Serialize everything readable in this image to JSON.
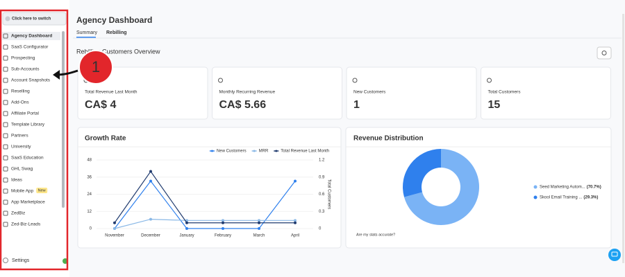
{
  "sidebar": {
    "switcher": "Click here to switch",
    "items": [
      "Agency Dashboard",
      "SaaS Configurator",
      "Prospecting",
      "Sub-Accounts",
      "Account Snapshots",
      "Reselling",
      "Add-Ons",
      "Affiliate Portal",
      "Template Library",
      "Partners",
      "University",
      "SaaS Education",
      "GHL Swag",
      "Ideas",
      "Mobile App",
      "App Marketplace",
      "ZedBiz",
      "Zed-Biz-Leads"
    ],
    "badge": "New",
    "settings": "Settings"
  },
  "annotation": {
    "step": "1"
  },
  "header": {
    "title": "Agency Dashboard",
    "tabs": [
      "Summary",
      "Rebilling"
    ]
  },
  "overview": {
    "title": "Rebilling Customers Overview"
  },
  "cards": [
    {
      "label": "Total Revenue Last Month",
      "value": "CA$ 4"
    },
    {
      "label": "Monthly Recurring Revenue",
      "value": "CA$ 5.66"
    },
    {
      "label": "New Customers",
      "value": "1"
    },
    {
      "label": "Total Customers",
      "value": "15"
    }
  ],
  "chart_data": [
    {
      "type": "line",
      "title": "Growth Rate",
      "categories": [
        "November",
        "December",
        "January",
        "February",
        "March",
        "April"
      ],
      "series": [
        {
          "name": "New Customers",
          "color": "#2f80ed",
          "axis": "y2",
          "values": [
            0,
            0.83,
            0,
            0,
            0,
            0.83
          ]
        },
        {
          "name": "MRR",
          "color": "#8ab8e6",
          "values": [
            0,
            6.5,
            5.66,
            5.66,
            5.66,
            5.66
          ]
        },
        {
          "name": "Total Revenue Last Month",
          "color": "#1f3a6e",
          "values": [
            4,
            40,
            4,
            4,
            4,
            4
          ]
        }
      ],
      "ylim": [
        0,
        48
      ],
      "yticks": [
        0,
        12,
        24,
        36,
        48
      ],
      "y2lim": [
        0,
        1.2
      ],
      "y2ticks": [
        0,
        0.3,
        0.6,
        0.9,
        1.2
      ],
      "y2label": "Total Customers"
    },
    {
      "type": "pie",
      "donut": true,
      "title": "Revenue Distribution",
      "categories": [
        "Seed Marketing Autom...",
        "Skool Email Training ..."
      ],
      "values": [
        70.7,
        29.3
      ],
      "value_labels": [
        "(70.7%)",
        "(29.3%)"
      ],
      "colors": [
        "#7ab3f5",
        "#2f80ed"
      ],
      "note": "Are my stats accurate?"
    }
  ]
}
